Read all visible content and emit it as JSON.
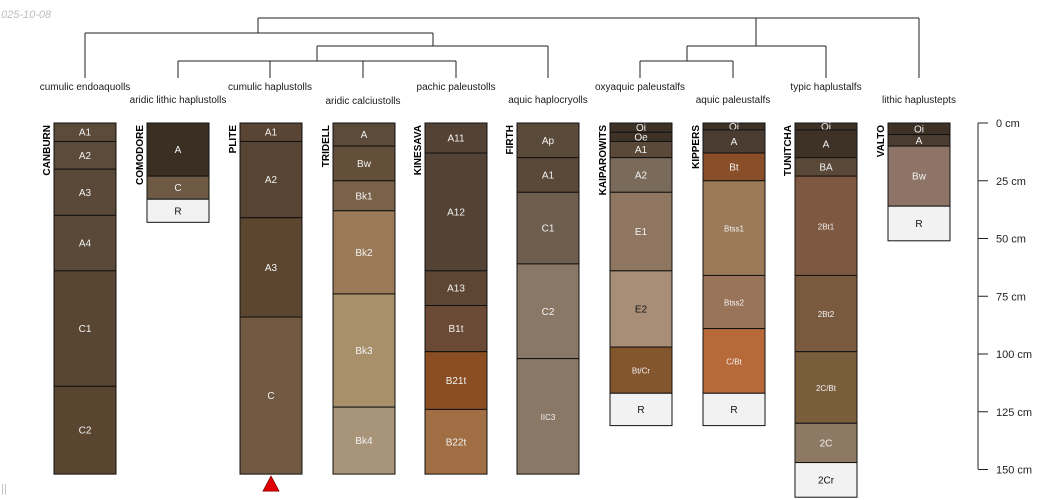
{
  "plot": {
    "date_label": "025-10-08",
    "corner_mark": "||",
    "depth_unit": "cm",
    "depth_ticks": [
      0,
      25,
      50,
      75,
      100,
      125,
      150
    ]
  },
  "profiles": [
    {
      "name": "CANBURN",
      "taxon": "cumulic endoaquolls",
      "truncated": false,
      "horizons": [
        {
          "name": "A1",
          "top": 0,
          "bottom": 8,
          "color": "#5c4a3a"
        },
        {
          "name": "A2",
          "top": 8,
          "bottom": 20,
          "color": "#5c4a3a"
        },
        {
          "name": "A3",
          "top": 20,
          "bottom": 40,
          "color": "#5a4838"
        },
        {
          "name": "A4",
          "top": 40,
          "bottom": 64,
          "color": "#5a4838"
        },
        {
          "name": "C1",
          "top": 64,
          "bottom": 114,
          "color": "#584632"
        },
        {
          "name": "C2",
          "top": 114,
          "bottom": 152,
          "color": "#5a4530"
        }
      ]
    },
    {
      "name": "COMODORE",
      "taxon": "aridic lithic haplustolls",
      "truncated": false,
      "horizons": [
        {
          "name": "A",
          "top": 0,
          "bottom": 23,
          "color": "#3b2f24"
        },
        {
          "name": "C",
          "top": 23,
          "bottom": 33,
          "color": "#6e5a44"
        },
        {
          "name": "R",
          "top": 33,
          "bottom": 43,
          "color": "#f2f2f2"
        }
      ]
    },
    {
      "name": "PLITE",
      "taxon": "cumulic haplustolls",
      "truncated": true,
      "horizons": [
        {
          "name": "A1",
          "top": 0,
          "bottom": 8,
          "color": "#5a4534"
        },
        {
          "name": "A2",
          "top": 8,
          "bottom": 41,
          "color": "#584432"
        },
        {
          "name": "A3",
          "top": 41,
          "bottom": 84,
          "color": "#5c4630"
        },
        {
          "name": "C",
          "top": 84,
          "bottom": 152,
          "color": "#725a42"
        }
      ]
    },
    {
      "name": "TRIDELL",
      "taxon": "aridic calciustolls",
      "truncated": false,
      "horizons": [
        {
          "name": "A",
          "top": 0,
          "bottom": 10,
          "color": "#5c4a3a"
        },
        {
          "name": "Bw",
          "top": 10,
          "bottom": 25,
          "color": "#64503a"
        },
        {
          "name": "Bk1",
          "top": 25,
          "bottom": 38,
          "color": "#7a6248"
        },
        {
          "name": "Bk2",
          "top": 38,
          "bottom": 74,
          "color": "#9a7a58"
        },
        {
          "name": "Bk3",
          "top": 74,
          "bottom": 123,
          "color": "#a8906a"
        },
        {
          "name": "Bk4",
          "top": 123,
          "bottom": 152,
          "color": "#a89478"
        }
      ]
    },
    {
      "name": "KINESAVA",
      "taxon": "pachic paleustolls",
      "truncated": false,
      "horizons": [
        {
          "name": "A11",
          "top": 0,
          "bottom": 13,
          "color": "#544234"
        },
        {
          "name": "A12",
          "top": 13,
          "bottom": 64,
          "color": "#544234"
        },
        {
          "name": "A13",
          "top": 64,
          "bottom": 79,
          "color": "#5e4634"
        },
        {
          "name": "B1t",
          "top": 79,
          "bottom": 99,
          "color": "#6a4a34"
        },
        {
          "name": "B21t",
          "top": 99,
          "bottom": 124,
          "color": "#8a4e22"
        },
        {
          "name": "B22t",
          "top": 124,
          "bottom": 152,
          "color": "#a06e42"
        }
      ]
    },
    {
      "name": "FIRTH",
      "taxon": "aquic haplocryolls",
      "truncated": false,
      "horizons": [
        {
          "name": "Ap",
          "top": 0,
          "bottom": 15,
          "color": "#5a4a3a"
        },
        {
          "name": "A1",
          "top": 15,
          "bottom": 30,
          "color": "#5a4838"
        },
        {
          "name": "C1",
          "top": 30,
          "bottom": 61,
          "color": "#6e5e4e"
        },
        {
          "name": "C2",
          "top": 61,
          "bottom": 102,
          "color": "#8a7866"
        },
        {
          "name": "IIC3",
          "top": 102,
          "bottom": 152,
          "color": "#8a7866",
          "small": true
        }
      ]
    },
    {
      "name": "KAIPAROWITS",
      "taxon": "oxyaquic paleustalfs",
      "truncated": false,
      "horizons": [
        {
          "name": "Oi",
          "top": 0,
          "bottom": 4,
          "color": "#3e3226"
        },
        {
          "name": "Oe",
          "top": 4,
          "bottom": 8,
          "color": "#3e3226"
        },
        {
          "name": "A1",
          "top": 8,
          "bottom": 15,
          "color": "#5a4838"
        },
        {
          "name": "A2",
          "top": 15,
          "bottom": 30,
          "color": "#7a6a5a"
        },
        {
          "name": "E1",
          "top": 30,
          "bottom": 64,
          "color": "#8e7660"
        },
        {
          "name": "E2",
          "top": 64,
          "bottom": 97,
          "color": "#a88e76",
          "dark": true
        },
        {
          "name": "Bt/Cr",
          "top": 97,
          "bottom": 117,
          "color": "#84562e",
          "small": true
        },
        {
          "name": "R",
          "top": 117,
          "bottom": 131,
          "color": "#f2f2f2"
        }
      ]
    },
    {
      "name": "KIPPERS",
      "taxon": "aquic paleustalfs",
      "truncated": false,
      "horizons": [
        {
          "name": "Oi",
          "top": 0,
          "bottom": 3,
          "color": "#3e3226"
        },
        {
          "name": "A",
          "top": 3,
          "bottom": 13,
          "color": "#4a3c30"
        },
        {
          "name": "Bt",
          "top": 13,
          "bottom": 25,
          "color": "#8a4e28"
        },
        {
          "name": "Btss1",
          "top": 25,
          "bottom": 66,
          "color": "#9a7a58",
          "small": true
        },
        {
          "name": "Btss2",
          "top": 66,
          "bottom": 89,
          "color": "#9a7458",
          "small": true
        },
        {
          "name": "C/Bt",
          "top": 89,
          "bottom": 117,
          "color": "#b8693a",
          "small": true
        },
        {
          "name": "R",
          "top": 117,
          "bottom": 131,
          "color": "#f2f2f2"
        }
      ]
    },
    {
      "name": "TUNITCHA",
      "taxon": "typic haplustalfs",
      "truncated": false,
      "horizons": [
        {
          "name": "Oi",
          "top": 0,
          "bottom": 3,
          "color": "#3e3226"
        },
        {
          "name": "A",
          "top": 3,
          "bottom": 15,
          "color": "#3e3226"
        },
        {
          "name": "BA",
          "top": 15,
          "bottom": 23,
          "color": "#5a4838"
        },
        {
          "name": "2Bt1",
          "top": 23,
          "bottom": 66,
          "color": "#7e5840",
          "small": true
        },
        {
          "name": "2Bt2",
          "top": 66,
          "bottom": 99,
          "color": "#7a5a3e",
          "small": true
        },
        {
          "name": "2C/Bt",
          "top": 99,
          "bottom": 130,
          "color": "#7a5e3c",
          "small": true
        },
        {
          "name": "2C",
          "top": 130,
          "bottom": 147,
          "color": "#8e7a64"
        },
        {
          "name": "2Cr",
          "top": 147,
          "bottom": 162,
          "color": "#f2f2f2"
        }
      ]
    },
    {
      "name": "VALTO",
      "taxon": "lithic haplustepts",
      "truncated": false,
      "horizons": [
        {
          "name": "Oi",
          "top": 0,
          "bottom": 5,
          "color": "#3e3226"
        },
        {
          "name": "A",
          "top": 5,
          "bottom": 10,
          "color": "#4a3c30"
        },
        {
          "name": "Bw",
          "top": 10,
          "bottom": 36,
          "color": "#8e7466"
        },
        {
          "name": "R",
          "top": 36,
          "bottom": 51,
          "color": "#f2f2f2"
        }
      ]
    }
  ]
}
